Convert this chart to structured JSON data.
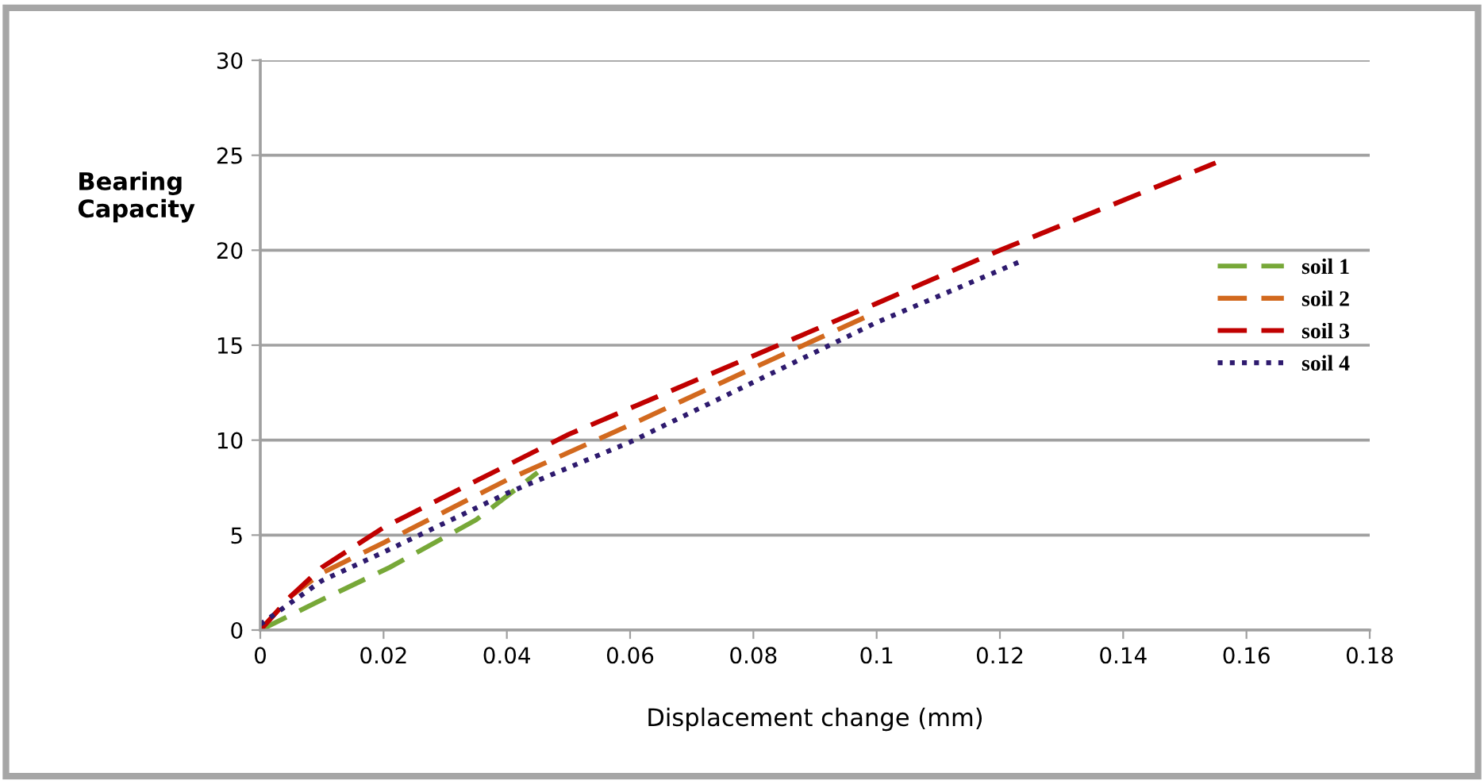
{
  "chart_data": {
    "type": "line",
    "xlabel": "Displacement change (mm)",
    "ylabel": "Bearing\nCapacity",
    "xlim": [
      0,
      0.18
    ],
    "xticks": [
      0,
      0.02,
      0.04,
      0.06,
      0.08,
      0.1,
      0.12,
      0.14,
      0.16,
      0.18
    ],
    "ylim": [
      0,
      30
    ],
    "yticks": [
      0,
      5,
      10,
      15,
      20,
      25,
      30
    ],
    "grid": "y",
    "legend": "right",
    "marker": "none",
    "series": [
      {
        "name": "soil 1",
        "color": "#77a838",
        "line_style": "dashed",
        "x": [
          0,
          0.01,
          0.021,
          0.035,
          0.045
        ],
        "values": [
          0,
          1.6,
          3.3,
          5.8,
          8.3
        ]
      },
      {
        "name": "soil 2",
        "color": "#d2691e",
        "line_style": "dashed",
        "x": [
          0,
          0.005,
          0.01,
          0.02,
          0.04,
          0.06,
          0.08,
          0.099
        ],
        "values": [
          0,
          1.8,
          3.0,
          4.6,
          7.9,
          10.8,
          13.8,
          16.6
        ]
      },
      {
        "name": "soil 3",
        "color": "#c00000",
        "line_style": "dashed",
        "x": [
          0,
          0.005,
          0.01,
          0.02,
          0.05,
          0.1,
          0.12,
          0.155
        ],
        "values": [
          0,
          1.8,
          3.3,
          5.4,
          10.3,
          17.2,
          20,
          24.6
        ]
      },
      {
        "name": "soil 4",
        "color": "#2e1a6e",
        "line_style": "dotted",
        "x": [
          0,
          0.01,
          0.02,
          0.04,
          0.06,
          0.1,
          0.124
        ],
        "values": [
          0.3,
          2.6,
          4.1,
          7.2,
          9.9,
          16.2,
          19.5
        ]
      }
    ]
  }
}
